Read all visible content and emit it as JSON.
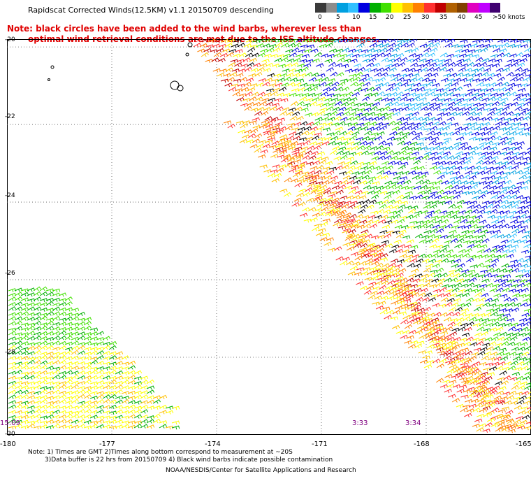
{
  "title": "Rapidscat Corrected Winds(12.5KM) v1.1 20150709 descending",
  "note": {
    "line1": "Note: black circles have been added to the wind barbs, wherever less than",
    "line2": "optimal wind retrieval conditions are met due to the ISS altitude changes."
  },
  "colorbar": {
    "colors": [
      "#3a3a3a",
      "#8c8c8c",
      "#00a0e0",
      "#30c0ff",
      "#0000e0",
      "#00b000",
      "#40e000",
      "#ffff00",
      "#ffc000",
      "#ff8000",
      "#ff3030",
      "#c00000",
      "#b06000",
      "#804000",
      "#e000c0",
      "#c000ff",
      "#400070"
    ],
    "labels": [
      "0",
      "5",
      "10",
      "15",
      "20",
      "25",
      "30",
      "35",
      "40",
      "45",
      ">50 knots"
    ]
  },
  "chart_data": {
    "type": "map",
    "y_ticks": [
      "-20",
      "-22",
      "-24",
      "-26",
      "-28",
      "-30"
    ],
    "x_ticks": [
      "-180",
      "-177",
      "-174",
      "-171",
      "-168",
      "-165"
    ],
    "x_range": [
      -180,
      -165
    ],
    "y_range": [
      -30,
      -19.8
    ],
    "grid": "dotted",
    "time_labels": [
      "15:09",
      "3:33",
      "3:34"
    ]
  },
  "footer": {
    "line1": "Note: 1) Times are GMT 2)Times along bottom correspond to measurement at ~20S",
    "line2": "3)Data buffer is 22 hrs from 20150709 4) Black wind barbs indicate possible contamination",
    "line3": "NOAA/NESDIS/Center for Satellite Applications and Research"
  }
}
